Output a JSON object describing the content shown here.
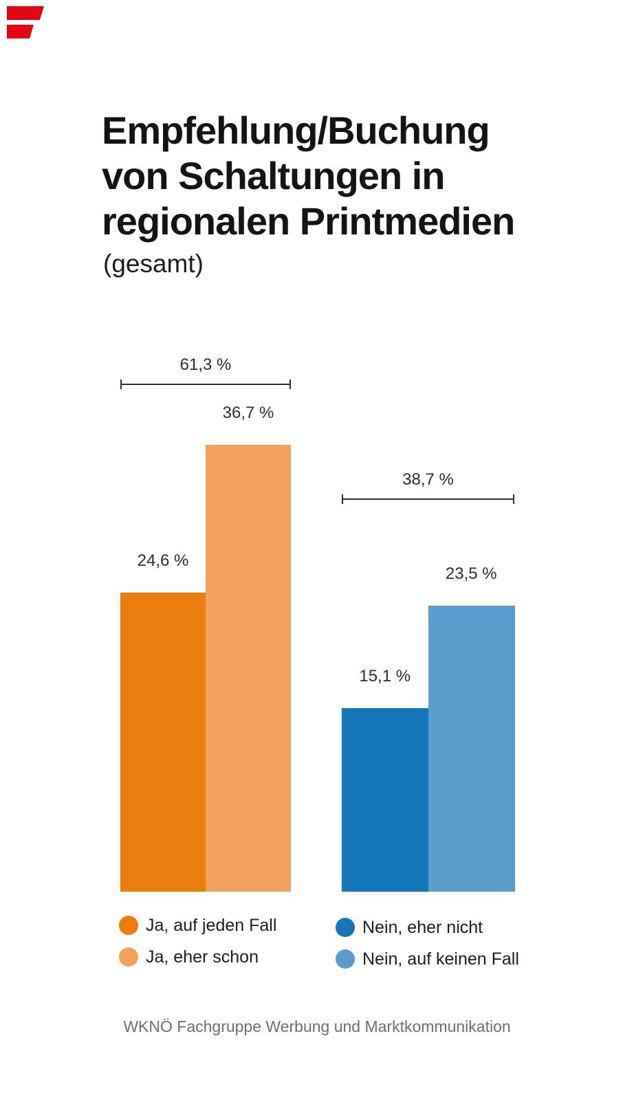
{
  "page": {
    "background": "#ffffff",
    "title_lines": [
      "Empfehlung/Buchung",
      "von Schaltungen in",
      "regionalen Printmedien"
    ],
    "subtitle": "(gesamt)",
    "footer": "WKNÖ Fachgruppe Werbung und Marktkommunikation"
  },
  "logo": {
    "color": "#e30613"
  },
  "chart_data": {
    "type": "bar",
    "title": "Empfehlung/Buchung von Schaltungen in regionalen Printmedien (gesamt)",
    "unit": "%",
    "grid": false,
    "legend_position": "bottom",
    "ylim": [
      0,
      40
    ],
    "groups": [
      {
        "total": 61.3,
        "total_label": "61,3 %",
        "bars": [
          {
            "label": "Ja, auf jeden Fall",
            "value": 24.6,
            "value_label": "24,6 %",
            "color": "#eb7d0e"
          },
          {
            "label": "Ja, eher schon",
            "value": 36.7,
            "value_label": "36,7 %",
            "color": "#f3a25e"
          }
        ]
      },
      {
        "total": 38.7,
        "total_label": "38,7 %",
        "bars": [
          {
            "label": "Nein, eher nicht",
            "value": 15.1,
            "value_label": "15,1 %",
            "color": "#1576b9"
          },
          {
            "label": "Nein, auf keinen Fall",
            "value": 23.5,
            "value_label": "23,5 %",
            "color": "#5b9ccd"
          }
        ]
      }
    ],
    "legend": [
      {
        "label": "Ja, auf jeden Fall",
        "color": "#eb7d0e"
      },
      {
        "label": "Ja, eher schon",
        "color": "#f3a25e"
      },
      {
        "label": "Nein, eher nicht",
        "color": "#1576b9"
      },
      {
        "label": "Nein, auf keinen Fall",
        "color": "#5b9ccd"
      }
    ]
  }
}
